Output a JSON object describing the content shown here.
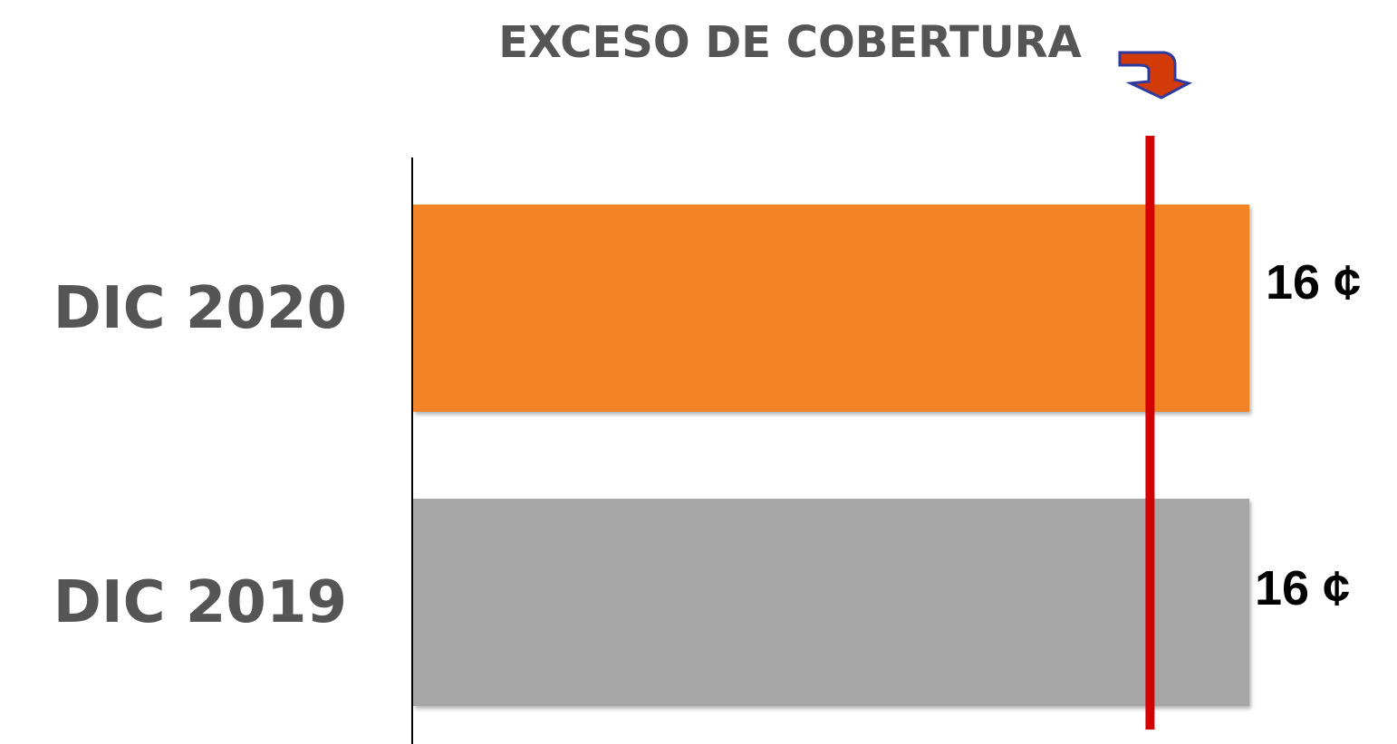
{
  "chart_data": {
    "type": "hbar",
    "title": "EXCESO DE COBERTURA",
    "categories": [
      "DIC 2020",
      "DIC 2019"
    ],
    "values": [
      16,
      16
    ],
    "value_labels": [
      "16 ¢",
      "16 ¢"
    ],
    "colors": [
      "#f28325",
      "#a6a6a6"
    ],
    "xlim": [
      0,
      16
    ],
    "reference": 14.1,
    "reference_color": "#d40000"
  }
}
